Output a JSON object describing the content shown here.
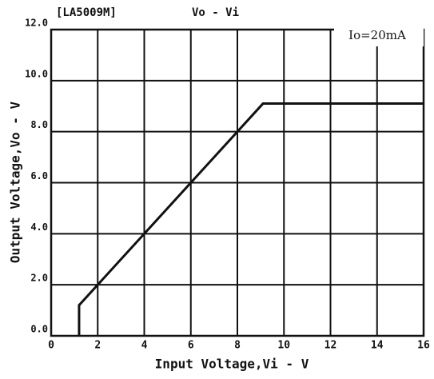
{
  "chart_data": {
    "type": "line",
    "title": "[LA5009M]",
    "subtitle": "Vo - Vi",
    "annotation": "Io=20mA",
    "x_label": "Input Voltage,Vi - V",
    "y_label": "Output Voltage,Vo - V",
    "series": [
      {
        "name": "Io=20mA",
        "color": "#111111",
        "x": [
          1.2,
          1.2,
          9.1,
          16
        ],
        "values": [
          0,
          1.2,
          9.1,
          9.1
        ]
      }
    ],
    "xlim": [
      0,
      16
    ],
    "xticks": [
      0,
      2,
      4,
      6,
      8,
      10,
      12,
      14,
      16
    ],
    "ylim": [
      0,
      12
    ],
    "yticks": [
      {
        "value": 0,
        "label": "0.0"
      },
      {
        "value": 2,
        "label": "2.0"
      },
      {
        "value": 4,
        "label": "4.0"
      },
      {
        "value": 6,
        "label": "6.0"
      },
      {
        "value": 8,
        "label": "8.0"
      },
      {
        "value": 10,
        "label": "10.0"
      },
      {
        "value": 12,
        "label": "12.0"
      }
    ],
    "grid": true
  }
}
